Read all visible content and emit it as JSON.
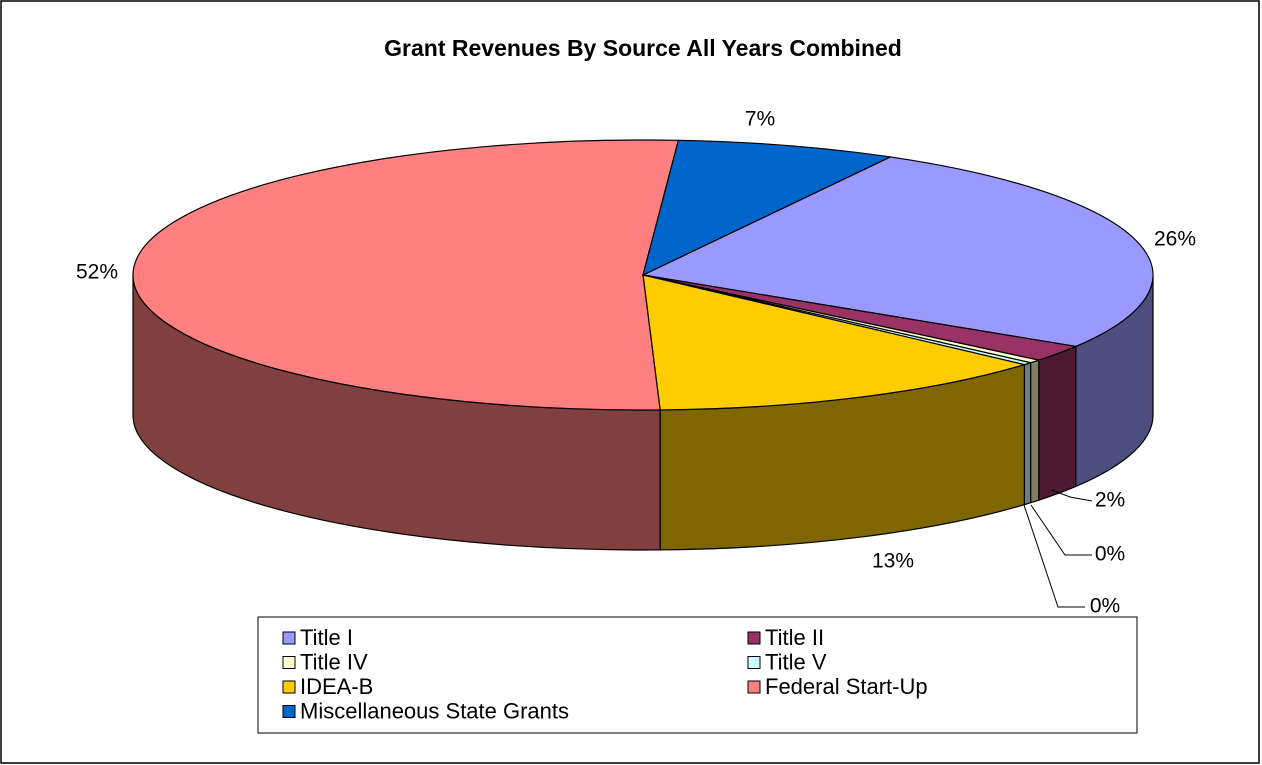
{
  "chart_data": {
    "type": "pie",
    "title": "Grant Revenues By Source All Years Combined",
    "categories": [
      "Title I",
      "Title II",
      "Title IV",
      "Title V",
      "IDEA-B",
      "Federal Start-Up",
      "Miscellaneous State Grants"
    ],
    "values": [
      26,
      2,
      0.4,
      0.3,
      13,
      52,
      7
    ],
    "value_labels": [
      "26%",
      "2%",
      "0%",
      "0%",
      "13%",
      "52%",
      "7%"
    ],
    "colors": [
      "#9999ff",
      "#993366",
      "#ffffcc",
      "#ccffff",
      "#ffcc00",
      "#ff8080",
      "#0066cc"
    ],
    "legend": "bottom"
  }
}
